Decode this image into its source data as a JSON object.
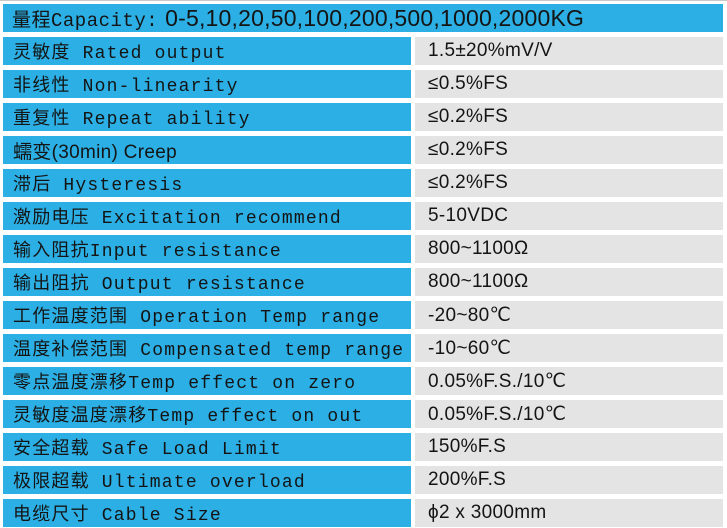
{
  "colors": {
    "header_blue": "#2bafe5",
    "value_gray": "#e4e4e4",
    "gutter_white": "#ffffff",
    "text": "#141414"
  },
  "header": {
    "label": "量程Capacity:",
    "capacity_list": "0-5,10,20,50,100,200,500,1000,2000KG"
  },
  "table": {
    "rows": [
      {
        "label": "灵敏度 Rated output",
        "value": "1.5±20%mV/V"
      },
      {
        "label": "非线性 Non-linearity",
        "value": "≤0.5%FS"
      },
      {
        "label": "重复性 Repeat ability",
        "value": "≤0.2%FS"
      },
      {
        "label": "蠕变(30min) Creep",
        "value": "≤0.2%FS"
      },
      {
        "label": "滞后 Hysteresis",
        "value": "≤0.2%FS"
      },
      {
        "label": "激励电压 Excitation recommend",
        "value": "5-10VDC"
      },
      {
        "label": "输入阻抗Input resistance",
        "value": "800~1100Ω"
      },
      {
        "label": "输出阻抗 Output resistance",
        "value": "800~1100Ω"
      },
      {
        "label": "工作温度范围 Operation Temp range",
        "value": "-20~80℃"
      },
      {
        "label": "温度补偿范围 Compensated temp range",
        "value": "-10~60℃"
      },
      {
        "label": "零点温度漂移Temp effect on zero",
        "value": "0.05%F.S./10℃"
      },
      {
        "label": "灵敏度温度漂移Temp effect on out",
        "value": "0.05%F.S./10℃"
      },
      {
        "label": "安全超载 Safe Load Limit",
        "value": "150%F.S"
      },
      {
        "label": "极限超载 Ultimate overload",
        "value": "200%F.S"
      },
      {
        "label": "电缆尺寸 Cable Size",
        "value": "ϕ2 x 3000mm"
      }
    ]
  }
}
